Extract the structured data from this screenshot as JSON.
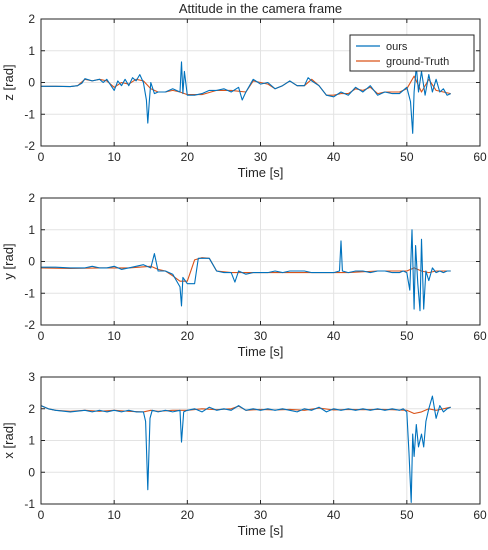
{
  "chart_data": [
    {
      "type": "line",
      "title": "Attitude in the camera frame",
      "xlabel": "Time [s]",
      "ylabel": "z [rad]",
      "xlim": [
        0,
        60
      ],
      "ylim": [
        -2,
        2
      ],
      "xticks": [
        "0",
        "10",
        "20",
        "30",
        "40",
        "50",
        "60"
      ],
      "yticks": [
        "-2",
        "-1",
        "0",
        "1",
        "2"
      ],
      "grid": true,
      "legend_position": "top-right",
      "series": [
        {
          "name": "ours",
          "color": "#0072BD",
          "x": [
            0,
            2,
            4,
            5,
            5.6,
            6,
            7,
            8,
            8.5,
            9,
            10,
            10.5,
            11,
            11.5,
            12,
            12.5,
            13,
            13.5,
            14,
            14.4,
            14.6,
            14.8,
            15,
            15.5,
            16,
            17,
            18,
            19,
            19.2,
            19.4,
            19.6,
            20,
            21,
            22,
            23,
            24,
            25,
            26,
            27,
            27.5,
            28,
            29,
            30,
            31,
            32,
            33,
            34,
            35,
            36,
            36.5,
            37,
            38,
            39,
            40,
            41,
            42,
            43,
            44,
            45,
            46,
            47,
            48,
            49,
            50,
            50.5,
            50.8,
            51,
            51.3,
            51.6,
            52,
            52.5,
            53,
            53.5,
            54,
            54.5,
            55,
            55.5,
            56
          ],
          "y": [
            -0.12,
            -0.12,
            -0.13,
            -0.1,
            -0.02,
            0.12,
            0.05,
            0.1,
            0.0,
            0.1,
            -0.25,
            0.05,
            -0.1,
            0.1,
            -0.1,
            0.15,
            0.05,
            0.25,
            0.0,
            -0.55,
            -1.28,
            -0.6,
            0.0,
            -0.35,
            -0.3,
            -0.3,
            -0.2,
            -0.3,
            0.65,
            -0.35,
            0.35,
            -0.4,
            -0.4,
            -0.35,
            -0.25,
            -0.25,
            -0.2,
            -0.3,
            -0.15,
            -0.55,
            -0.3,
            0.1,
            -0.05,
            0.0,
            -0.2,
            -0.1,
            0.05,
            -0.1,
            -0.1,
            0.15,
            0.05,
            -0.1,
            -0.4,
            -0.45,
            -0.3,
            -0.4,
            -0.15,
            -0.3,
            -0.1,
            -0.4,
            -0.3,
            -0.35,
            -0.35,
            -0.15,
            -0.6,
            -1.6,
            -0.3,
            0.5,
            -0.3,
            0.35,
            -0.4,
            0.25,
            -0.3,
            0.1,
            -0.3,
            -0.2,
            -0.4,
            -0.35
          ]
        },
        {
          "name": "ground-Truth",
          "color": "#D95319",
          "x": [
            0,
            2,
            4,
            5,
            5.5,
            6,
            7,
            8,
            9,
            10,
            11,
            12,
            13,
            14,
            15,
            16,
            17,
            18,
            19,
            20,
            22,
            24,
            26,
            28,
            29,
            30,
            31,
            32,
            33,
            34,
            35,
            36,
            37,
            38,
            39,
            40,
            41,
            42,
            43,
            44,
            45,
            46,
            47,
            48,
            49,
            50,
            51,
            52,
            53,
            54,
            55,
            56
          ],
          "y": [
            -0.12,
            -0.12,
            -0.13,
            -0.1,
            0.0,
            0.1,
            0.05,
            0.1,
            0.05,
            -0.15,
            0.0,
            -0.05,
            0.1,
            0.05,
            -0.2,
            -0.3,
            -0.3,
            -0.25,
            -0.3,
            -0.38,
            -0.38,
            -0.25,
            -0.25,
            -0.3,
            0.05,
            0.0,
            -0.05,
            -0.2,
            -0.1,
            0.05,
            -0.1,
            -0.1,
            0.1,
            -0.1,
            -0.4,
            -0.4,
            -0.35,
            -0.35,
            -0.2,
            -0.25,
            -0.15,
            -0.35,
            -0.3,
            -0.3,
            -0.3,
            -0.2,
            0.2,
            -0.3,
            0.1,
            -0.25,
            -0.3,
            -0.35
          ]
        }
      ]
    },
    {
      "type": "line",
      "title": "",
      "xlabel": "Time [s]",
      "ylabel": "y [rad]",
      "xlim": [
        0,
        60
      ],
      "ylim": [
        -2,
        2
      ],
      "xticks": [
        "0",
        "10",
        "20",
        "30",
        "40",
        "50",
        "60"
      ],
      "yticks": [
        "-2",
        "-1",
        "0",
        "1",
        "2"
      ],
      "grid": true,
      "series": [
        {
          "name": "ours",
          "color": "#0072BD",
          "x": [
            0,
            2,
            4,
            6,
            7,
            8,
            9,
            10,
            11,
            12,
            13,
            14,
            15,
            15.5,
            16,
            17,
            18,
            18.5,
            19,
            19.2,
            19.4,
            20,
            21,
            21.5,
            22,
            23,
            24,
            25,
            26,
            26.5,
            27,
            28,
            29,
            30,
            31,
            32,
            33,
            34,
            35,
            36,
            37,
            38,
            39,
            40,
            40.8,
            41,
            41.2,
            42,
            43,
            44,
            45,
            46,
            47,
            48,
            49,
            49.5,
            50,
            50.4,
            50.7,
            51,
            51.2,
            51.5,
            51.8,
            52,
            52.3,
            52.6,
            53,
            53.5,
            54,
            54.5,
            55,
            55.5,
            56
          ],
          "y": [
            -0.18,
            -0.18,
            -0.2,
            -0.2,
            -0.15,
            -0.2,
            -0.2,
            -0.15,
            -0.25,
            -0.2,
            -0.15,
            -0.1,
            -0.2,
            0.25,
            -0.3,
            -0.3,
            -0.4,
            -0.6,
            -0.8,
            -1.4,
            -0.5,
            -0.7,
            -0.7,
            0.1,
            0.1,
            0.1,
            -0.3,
            -0.35,
            -0.35,
            -0.65,
            -0.3,
            -0.4,
            -0.35,
            -0.35,
            -0.35,
            -0.3,
            -0.35,
            -0.3,
            -0.3,
            -0.3,
            -0.35,
            -0.35,
            -0.35,
            -0.35,
            -0.3,
            0.65,
            -0.3,
            -0.35,
            -0.3,
            -0.3,
            -0.35,
            -0.3,
            -0.3,
            -0.35,
            -0.35,
            -0.3,
            -0.35,
            -0.9,
            1.0,
            -1.5,
            0.5,
            -0.7,
            -1.55,
            0.7,
            -1.5,
            -0.3,
            -0.6,
            -0.2,
            -0.35,
            -0.3,
            -0.35,
            -0.3,
            -0.3
          ]
        },
        {
          "name": "ground-Truth",
          "color": "#D95319",
          "x": [
            0,
            4,
            8,
            12,
            15,
            16,
            17,
            18,
            19,
            20,
            21,
            22,
            23,
            24,
            26,
            30,
            36,
            42,
            46,
            50,
            51,
            52,
            53,
            54,
            56
          ],
          "y": [
            -0.2,
            -0.22,
            -0.2,
            -0.2,
            -0.15,
            -0.25,
            -0.3,
            -0.45,
            -0.62,
            -0.62,
            0.05,
            0.12,
            0.1,
            -0.3,
            -0.35,
            -0.35,
            -0.35,
            -0.35,
            -0.3,
            -0.3,
            -0.2,
            -0.3,
            -0.35,
            -0.3,
            -0.3
          ]
        }
      ]
    },
    {
      "type": "line",
      "title": "",
      "xlabel": "Time [s]",
      "ylabel": "x [rad]",
      "xlim": [
        0,
        60
      ],
      "ylim": [
        -1,
        3
      ],
      "xticks": [
        "0",
        "10",
        "20",
        "30",
        "40",
        "50",
        "60"
      ],
      "yticks": [
        "-1",
        "0",
        "1",
        "2",
        "3"
      ],
      "grid": true,
      "series": [
        {
          "name": "ours",
          "color": "#0072BD",
          "x": [
            0,
            1,
            2,
            4,
            6,
            7,
            8,
            9,
            10,
            11,
            12,
            13,
            14,
            14.3,
            14.6,
            14.9,
            15.2,
            16,
            17,
            18,
            19,
            19.2,
            19.5,
            20,
            21,
            22,
            23,
            24,
            25,
            26,
            27,
            28,
            29,
            30,
            31,
            32,
            33,
            34,
            35,
            36,
            37,
            38,
            39,
            40,
            41,
            42,
            43,
            44,
            45,
            46,
            47,
            48,
            49,
            49.5,
            50,
            50.3,
            50.6,
            50.8,
            51,
            51.3,
            51.6,
            52,
            52.3,
            52.6,
            53,
            53.5,
            54,
            54.5,
            55,
            55.5,
            56
          ],
          "y": [
            2.1,
            2.0,
            1.95,
            1.9,
            1.95,
            1.9,
            1.95,
            1.9,
            1.95,
            1.9,
            1.95,
            1.9,
            1.9,
            1.6,
            -0.55,
            1.7,
            1.95,
            1.9,
            1.95,
            1.9,
            1.95,
            0.95,
            1.9,
            1.95,
            2.0,
            1.9,
            2.05,
            1.95,
            2.0,
            1.95,
            2.1,
            1.95,
            2.0,
            1.95,
            2.0,
            1.95,
            2.0,
            1.95,
            1.9,
            2.0,
            1.95,
            2.05,
            1.9,
            2.0,
            1.95,
            2.0,
            1.95,
            2.0,
            1.95,
            2.0,
            1.95,
            2.0,
            1.95,
            2.0,
            1.9,
            0.6,
            -0.95,
            1.2,
            0.5,
            1.5,
            0.8,
            1.2,
            0.8,
            1.6,
            2.0,
            2.4,
            1.7,
            2.1,
            1.9,
            2.0,
            2.05
          ]
        },
        {
          "name": "ground-Truth",
          "color": "#D95319",
          "x": [
            0,
            1,
            2,
            4,
            6,
            8,
            10,
            12,
            14,
            15,
            16,
            18,
            20,
            22,
            24,
            26,
            27,
            28,
            30,
            32,
            34,
            36,
            38,
            40,
            42,
            44,
            46,
            48,
            50,
            51,
            52,
            53,
            54,
            55,
            56
          ],
          "y": [
            2.1,
            2.0,
            1.95,
            1.92,
            1.95,
            1.92,
            1.95,
            1.92,
            1.9,
            1.95,
            1.92,
            1.95,
            1.95,
            2.0,
            1.97,
            2.0,
            2.08,
            1.95,
            1.98,
            1.96,
            1.98,
            1.95,
            2.02,
            1.96,
            1.98,
            1.97,
            1.98,
            1.97,
            1.95,
            1.85,
            1.9,
            2.0,
            1.95,
            2.0,
            2.05
          ]
        }
      ]
    }
  ]
}
